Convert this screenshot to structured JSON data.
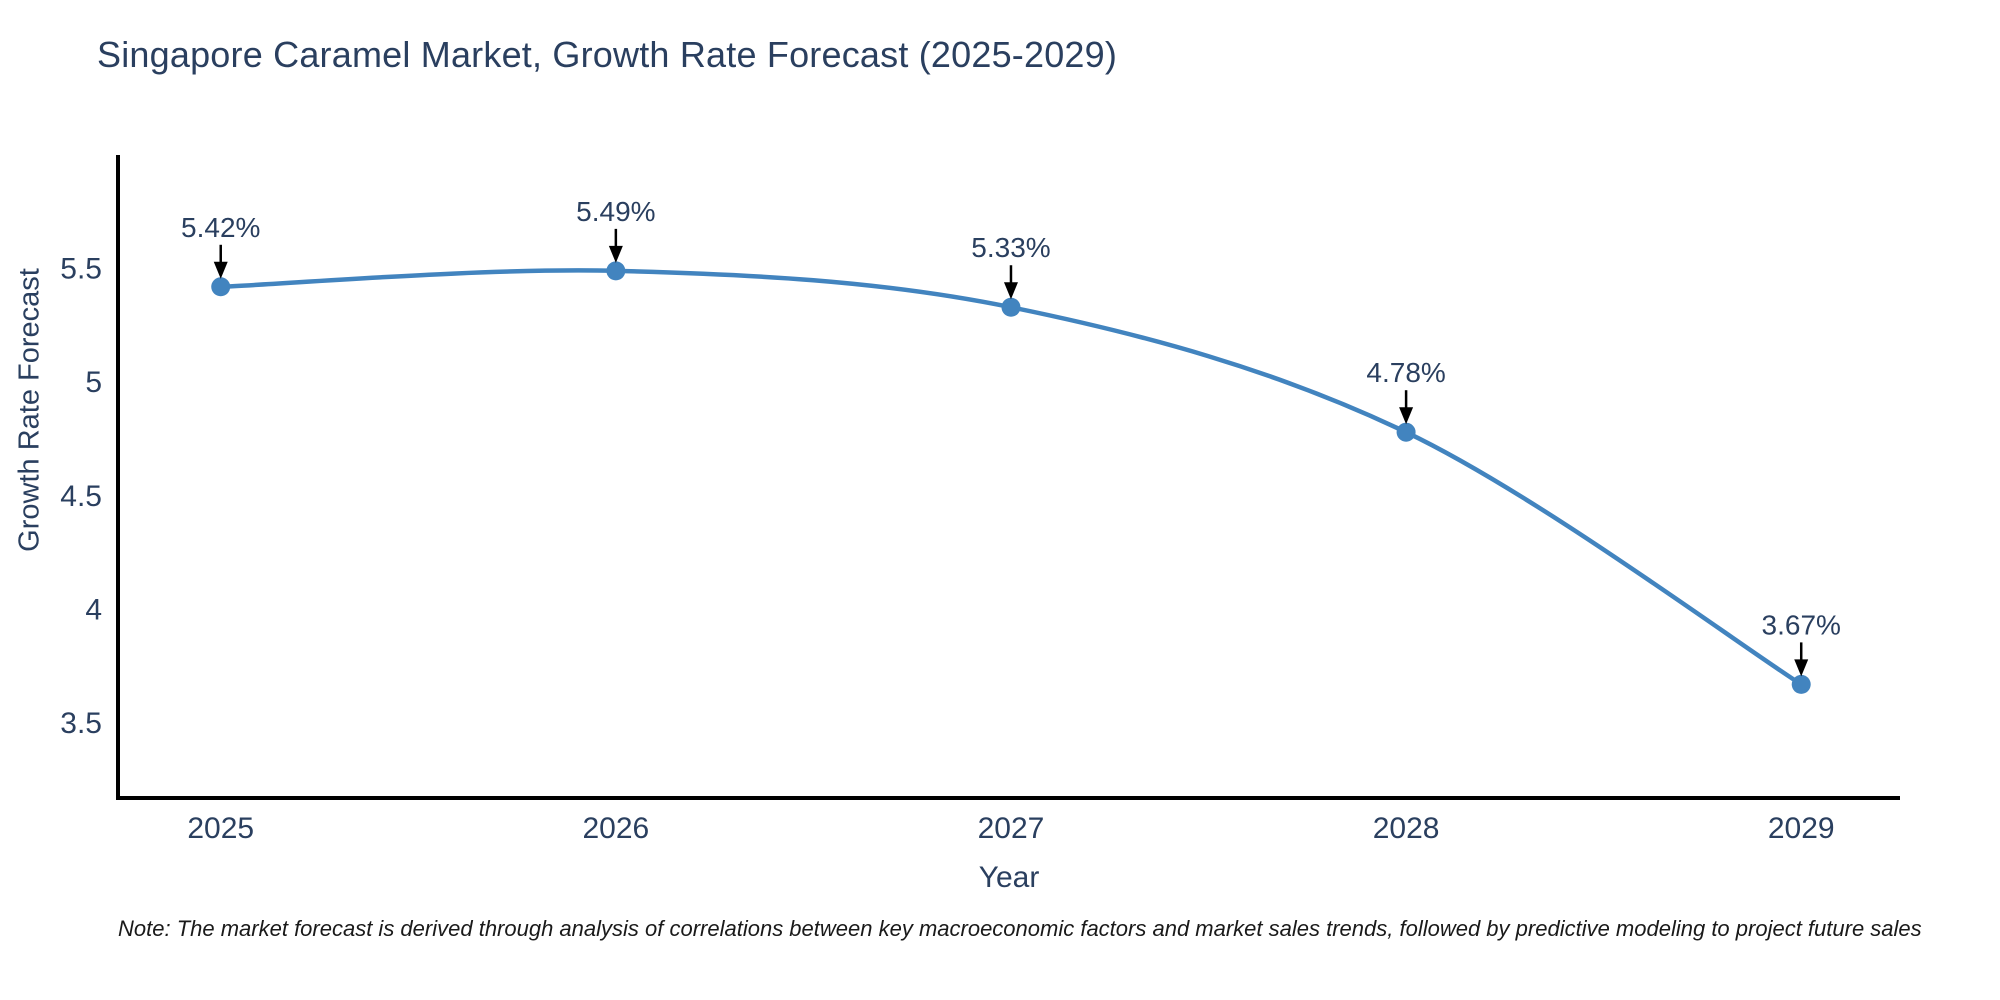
{
  "chart_data": {
    "type": "line",
    "title": "Singapore Caramel Market, Growth Rate Forecast (2025-2029)",
    "xlabel": "Year",
    "ylabel": "Growth Rate Forecast",
    "series_name": "Growth Rate Forecast",
    "x": [
      2025,
      2026,
      2027,
      2028,
      2029
    ],
    "values": [
      5.42,
      5.49,
      5.33,
      4.78,
      3.67
    ],
    "point_labels": [
      "5.42%",
      "5.49%",
      "5.33%",
      "4.78%",
      "3.67%"
    ],
    "xticks": [
      {
        "value": 2025,
        "label": "2025"
      },
      {
        "value": 2026,
        "label": "2026"
      },
      {
        "value": 2027,
        "label": "2027"
      },
      {
        "value": 2028,
        "label": "2028"
      },
      {
        "value": 2029,
        "label": "2029"
      }
    ],
    "yticks": [
      {
        "value": 3.5,
        "label": "3.5"
      },
      {
        "value": 4,
        "label": "4"
      },
      {
        "value": 4.5,
        "label": "4.5"
      },
      {
        "value": 5,
        "label": "5"
      },
      {
        "value": 5.5,
        "label": "5.5"
      }
    ],
    "xlim": [
      2024.74,
      2029.25
    ],
    "ylim": [
      3.17,
      6.0
    ],
    "line_shape": "spline",
    "grid": false,
    "legend": "none",
    "note": "Note: The market forecast is derived through analysis of correlations between key macroeconomic factors and market sales trends, followed by predictive modeling to project future sales",
    "colors": {
      "line": "#4284bf",
      "marker": "#4284bf",
      "axis": "#000000",
      "tick_text": "#2a3f5f",
      "annotation_text": "#2a3f5f",
      "arrow": "#000000",
      "title_text": "#2a3f5f",
      "note_text": "#1a1a1a",
      "background": "#ffffff"
    }
  }
}
